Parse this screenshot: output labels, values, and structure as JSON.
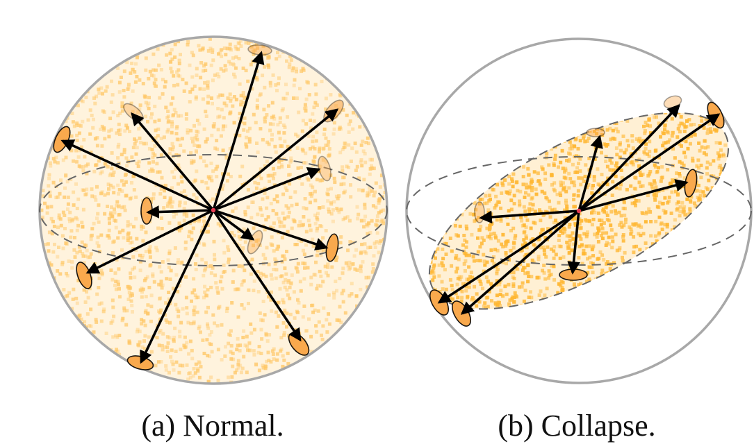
{
  "panels": [
    {
      "caption": "(a) Normal.",
      "state": "normal",
      "colors": {
        "sphere_fill": "#ffe0a8",
        "dot": "#ffc766",
        "cap_fill": "#f9a94d",
        "arrow": "#000000",
        "outline": "#a8a8a8",
        "dashed": "#666666",
        "origin": "#e53950"
      }
    },
    {
      "caption": "(b) Collapse.",
      "state": "collapse",
      "colors": {
        "disk_fill": "#ffe0a8",
        "dot": "#ffb733",
        "cap_fill": "#f9a94d",
        "arrow": "#000000",
        "outline": "#a8a8a8",
        "dashed": "#666666",
        "origin": "#e53950"
      }
    }
  ]
}
